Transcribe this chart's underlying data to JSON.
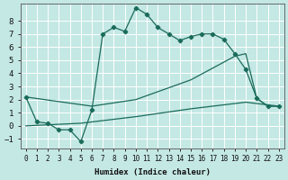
{
  "xlabel": "Humidex (Indice chaleur)",
  "bg_color": "#c4e8e4",
  "grid_color": "#ffffff",
  "line_color": "#1a6b5a",
  "xlim": [
    -0.5,
    23.5
  ],
  "ylim": [
    -1.7,
    9.3
  ],
  "xticks": [
    0,
    1,
    2,
    3,
    4,
    5,
    6,
    7,
    8,
    9,
    10,
    11,
    12,
    13,
    14,
    15,
    16,
    17,
    18,
    19,
    20,
    21,
    22,
    23
  ],
  "yticks": [
    -1,
    0,
    1,
    2,
    3,
    4,
    5,
    6,
    7,
    8
  ],
  "series1_x": [
    0,
    1,
    2,
    3,
    4,
    5,
    6,
    7,
    8,
    9,
    10,
    11,
    12,
    13,
    14,
    15,
    16,
    17,
    18,
    19,
    20,
    21,
    22,
    23
  ],
  "series1_y": [
    2.2,
    0.3,
    0.2,
    -0.3,
    -0.3,
    -1.2,
    1.2,
    7.0,
    7.5,
    7.2,
    9.0,
    8.5,
    7.5,
    7.0,
    6.5,
    6.8,
    7.0,
    7.0,
    6.6,
    5.5,
    4.3,
    2.1,
    1.5,
    1.5
  ],
  "series2_x": [
    0,
    6,
    10,
    15,
    19,
    20,
    21,
    22,
    23
  ],
  "series2_y": [
    2.2,
    1.5,
    2.0,
    3.5,
    5.3,
    5.5,
    2.1,
    1.5,
    1.5
  ],
  "series3_x": [
    0,
    5,
    10,
    15,
    20,
    23
  ],
  "series3_y": [
    0.0,
    0.2,
    0.7,
    1.3,
    1.8,
    1.5
  ]
}
